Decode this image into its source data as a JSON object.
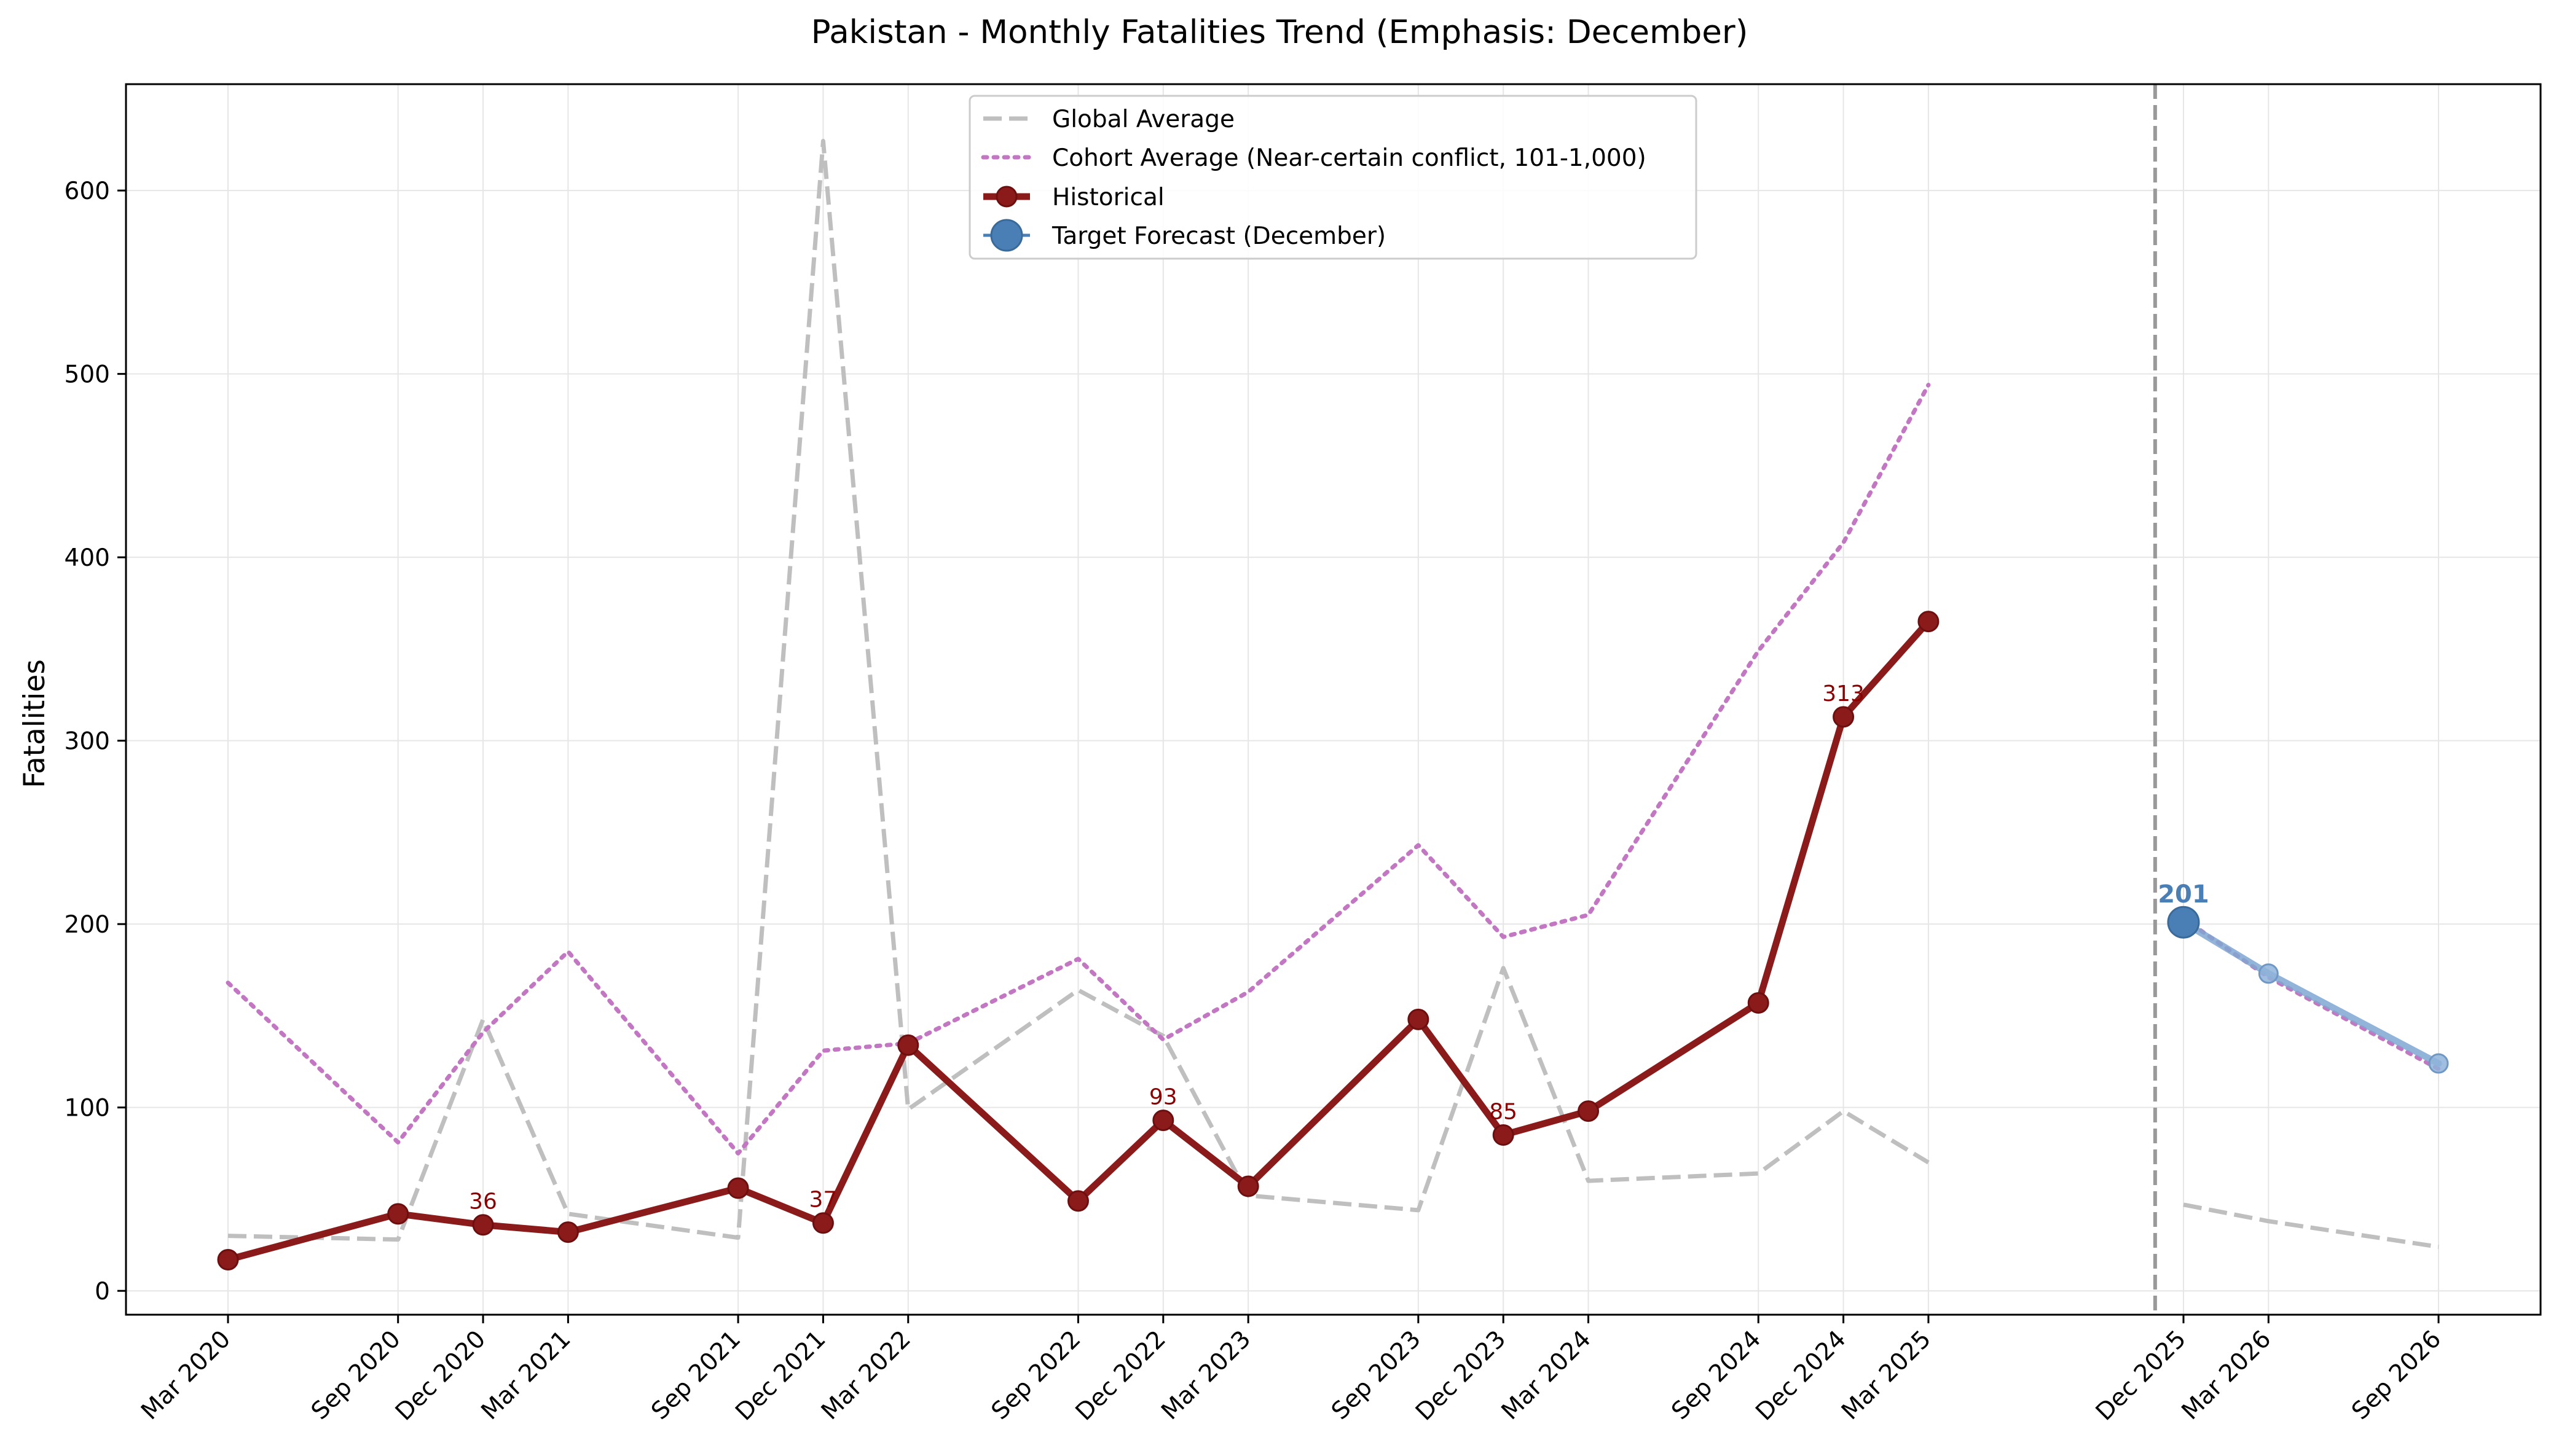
{
  "chart_data": {
    "type": "line",
    "title": "Pakistan - Monthly Fatalities Trend (Emphasis: December)",
    "xlabel": "",
    "ylabel": "Fatalities",
    "ylim": [
      -13,
      658
    ],
    "y_ticks": [
      0,
      100,
      200,
      300,
      400,
      500,
      600
    ],
    "grid": true,
    "legend_position": "top-center",
    "x_categories": [
      "Mar 2020",
      "Sep 2020",
      "Dec 2020",
      "Mar 2021",
      "Sep 2021",
      "Dec 2021",
      "Mar 2022",
      "Sep 2022",
      "Dec 2022",
      "Mar 2023",
      "Sep 2023",
      "Dec 2023",
      "Mar 2024",
      "Sep 2024",
      "Dec 2024",
      "Mar 2025",
      "Dec 2025",
      "Mar 2026",
      "Sep 2026"
    ],
    "x_month_index": [
      0,
      6,
      9,
      12,
      18,
      21,
      24,
      30,
      33,
      36,
      42,
      45,
      48,
      54,
      57,
      60,
      69,
      72,
      78
    ],
    "forecast_start_marker": "Dec 2025",
    "series": [
      {
        "name": "Global Average",
        "style": "dashed",
        "color": "#bfbfbf",
        "segments": [
          {
            "x": [
              "Mar 2020",
              "Sep 2020",
              "Dec 2020",
              "Mar 2021",
              "Sep 2021",
              "Dec 2021",
              "Mar 2022",
              "Sep 2022",
              "Dec 2022",
              "Mar 2023",
              "Sep 2023",
              "Dec 2023",
              "Mar 2024",
              "Sep 2024",
              "Dec 2024",
              "Mar 2025"
            ],
            "values": [
              30,
              28,
              148,
              42,
              29,
              627,
              99,
              164,
              139,
              52,
              44,
              176,
              60,
              64,
              98,
              70
            ]
          },
          {
            "x": [
              "Dec 2025",
              "Mar 2026",
              "Sep 2026"
            ],
            "values": [
              47,
              38,
              24
            ]
          }
        ]
      },
      {
        "name": "Cohort Average (Near-certain conflict, 101-1,000)",
        "style": "dotted",
        "color": "#c377c3",
        "segments": [
          {
            "x": [
              "Mar 2020",
              "Sep 2020",
              "Dec 2020",
              "Mar 2021",
              "Sep 2021",
              "Dec 2021",
              "Mar 2022",
              "Sep 2022",
              "Dec 2022",
              "Mar 2023",
              "Sep 2023",
              "Dec 2023",
              "Mar 2024",
              "Sep 2024",
              "Dec 2024",
              "Mar 2025"
            ],
            "values": [
              168,
              81,
              141,
              185,
              75,
              131,
              135,
              181,
              137,
              163,
              243,
              193,
              205,
              349,
              408,
              494
            ]
          },
          {
            "x": [
              "Dec 2025",
              "Mar 2026",
              "Sep 2026"
            ],
            "values": [
              203,
              171,
              121
            ]
          }
        ]
      },
      {
        "name": "Historical",
        "style": "solid-markers",
        "color": "#8b1a1a",
        "x": [
          "Mar 2020",
          "Sep 2020",
          "Dec 2020",
          "Mar 2021",
          "Sep 2021",
          "Dec 2021",
          "Mar 2022",
          "Sep 2022",
          "Dec 2022",
          "Mar 2023",
          "Sep 2023",
          "Dec 2023",
          "Mar 2024",
          "Sep 2024",
          "Dec 2024",
          "Mar 2025"
        ],
        "values": [
          17,
          42,
          36,
          32,
          56,
          37,
          134,
          49,
          93,
          57,
          148,
          85,
          98,
          157,
          313,
          365
        ]
      },
      {
        "name": "Target Forecast (December)",
        "style": "forecast",
        "color": "#4a7fb5",
        "x": [
          "Dec 2025",
          "Mar 2026",
          "Sep 2026"
        ],
        "values": [
          201,
          173,
          124
        ]
      }
    ],
    "annotations": [
      {
        "x": "Dec 2020",
        "value": 36,
        "text": "36",
        "color": "#8b0000"
      },
      {
        "x": "Dec 2021",
        "value": 37,
        "text": "37",
        "color": "#8b0000"
      },
      {
        "x": "Dec 2022",
        "value": 93,
        "text": "93",
        "color": "#8b0000"
      },
      {
        "x": "Dec 2023",
        "value": 85,
        "text": "85",
        "color": "#8b0000"
      },
      {
        "x": "Dec 2024",
        "value": 313,
        "text": "313",
        "color": "#8b0000"
      },
      {
        "x": "Dec 2025",
        "value": 201,
        "text": "201",
        "color": "#4a7fb5",
        "bold": true
      }
    ]
  }
}
